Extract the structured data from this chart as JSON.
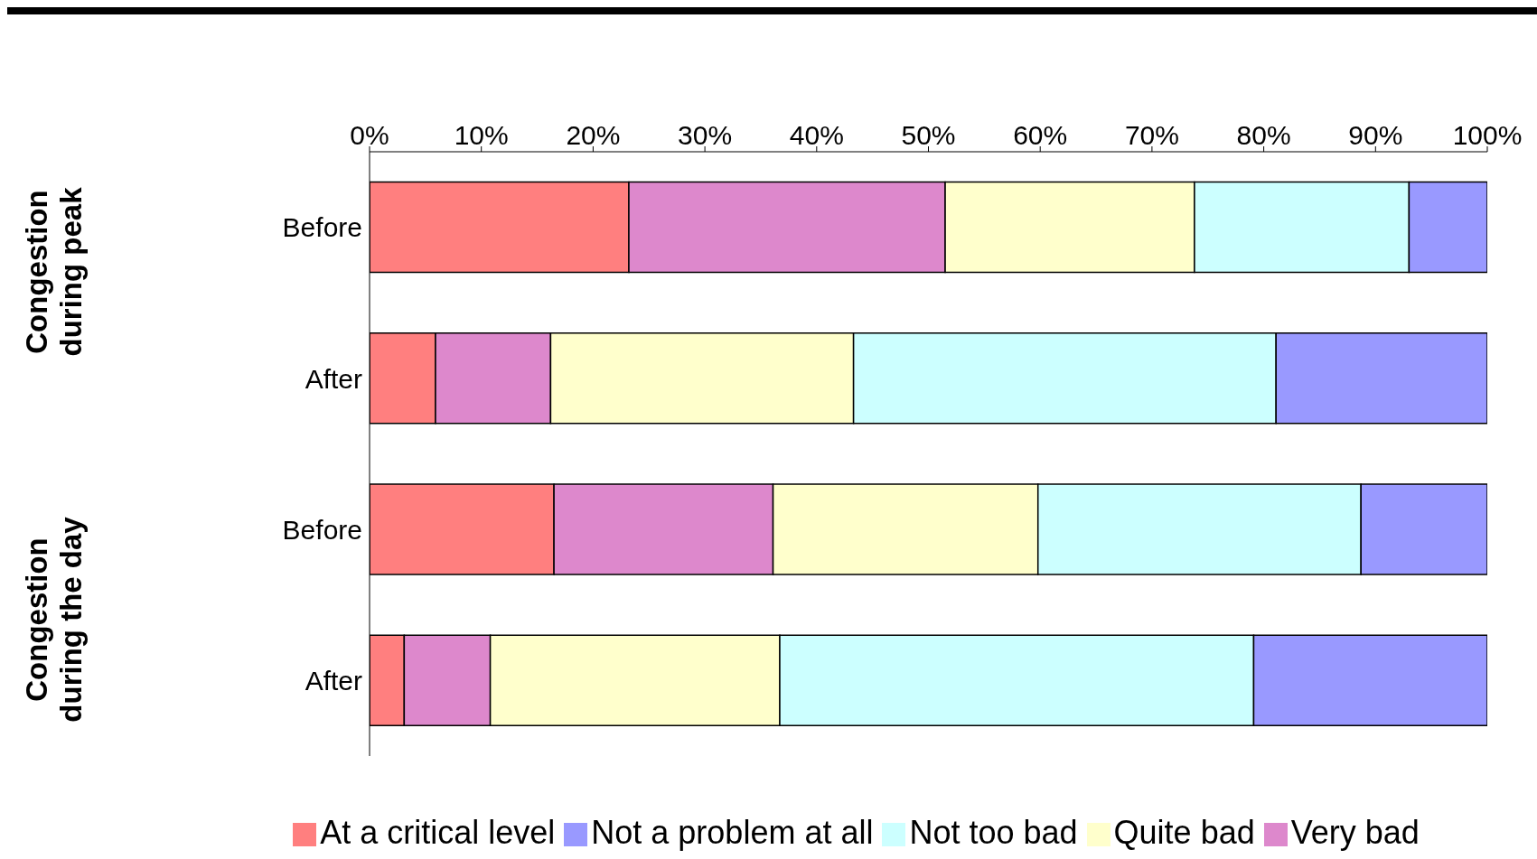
{
  "chart_data": {
    "type": "bar",
    "orientation": "horizontal",
    "stacked": true,
    "categories": [
      "Before",
      "After",
      "Before",
      "After"
    ],
    "series": [
      {
        "name": "At a critical level",
        "color": "#ff7f7f",
        "values": [
          23.2,
          5.9,
          16.5,
          3.1
        ]
      },
      {
        "name": "Very bad",
        "color": "#dd88cc",
        "values": [
          28.3,
          10.3,
          19.6,
          7.7
        ]
      },
      {
        "name": "Quite bad",
        "color": "#ffffcc",
        "values": [
          22.3,
          27.1,
          23.7,
          25.9
        ]
      },
      {
        "name": "Not too bad",
        "color": "#ccffff",
        "values": [
          19.2,
          37.8,
          28.9,
          42.4
        ]
      },
      {
        "name": "Not a problem at all",
        "color": "#9999ff",
        "values": [
          7.0,
          18.9,
          11.3,
          20.9
        ]
      }
    ],
    "xlim": [
      0,
      100
    ],
    "xticks": [
      {
        "value": 0,
        "label": "0%"
      },
      {
        "value": 10,
        "label": "10%"
      },
      {
        "value": 20,
        "label": "20%"
      },
      {
        "value": 30,
        "label": "30%"
      },
      {
        "value": 40,
        "label": "40%"
      },
      {
        "value": 50,
        "label": "50%"
      },
      {
        "value": 60,
        "label": "60%"
      },
      {
        "value": 70,
        "label": "70%"
      },
      {
        "value": 80,
        "label": "80%"
      },
      {
        "value": 90,
        "label": "90%"
      },
      {
        "value": 100,
        "label": "100%"
      }
    ],
    "annotations": [
      "Congestion during peak",
      "Congestion during the day"
    ],
    "grid": false,
    "legend": "bottom"
  }
}
